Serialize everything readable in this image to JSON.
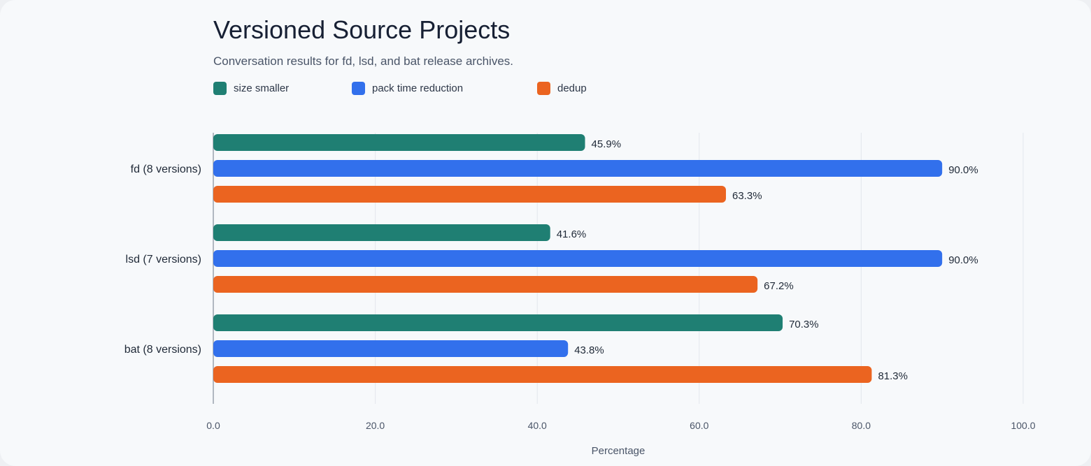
{
  "chart_data": {
    "type": "bar",
    "orientation": "horizontal",
    "title": "Versioned Source Projects",
    "subtitle": "Conversation results for fd, lsd, and bat release archives.",
    "xlabel": "Percentage",
    "ylabel": "",
    "xlim": [
      0,
      100
    ],
    "xticks": [
      "0.0",
      "20.0",
      "40.0",
      "60.0",
      "80.0",
      "100.0"
    ],
    "grid": "vertical",
    "legend_position": "top-left",
    "categories": [
      "fd (8 versions)",
      "lsd (7 versions)",
      "bat (8 versions)"
    ],
    "series": [
      {
        "name": "size smaller",
        "color": "#1f7f73",
        "values": [
          45.9,
          41.6,
          70.3
        ],
        "labels": [
          "45.9%",
          "41.6%",
          "70.3%"
        ]
      },
      {
        "name": "pack time reduction",
        "color": "#3270ec",
        "values": [
          90.0,
          90.0,
          43.8
        ],
        "labels": [
          "90.0%",
          "90.0%",
          "43.8%"
        ]
      },
      {
        "name": "dedup",
        "color": "#eb6420",
        "values": [
          63.3,
          67.2,
          81.3
        ],
        "labels": [
          "63.3%",
          "67.2%",
          "81.3%"
        ]
      }
    ]
  }
}
